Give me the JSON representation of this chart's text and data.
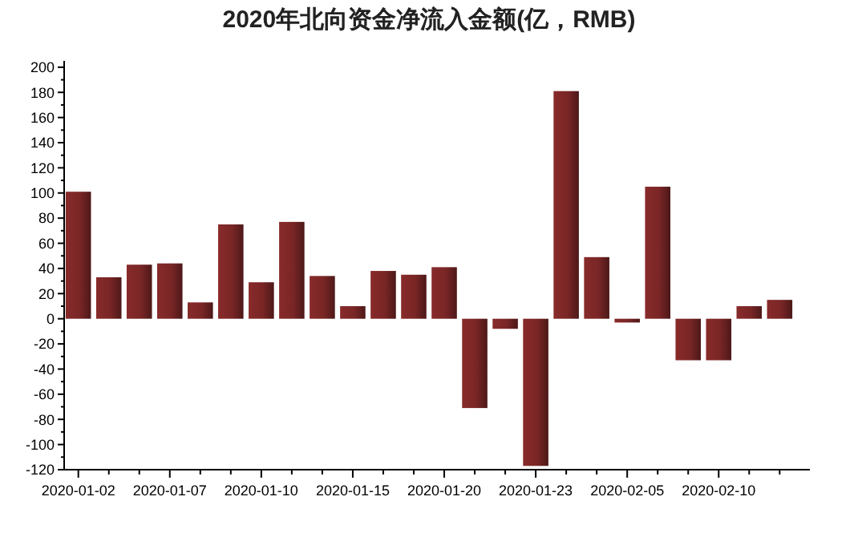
{
  "chart_data": {
    "type": "bar",
    "title": "2020年北向资金净流入金额(亿，RMB)",
    "categories": [
      "2020-01-02",
      null,
      null,
      "2020-01-07",
      null,
      null,
      "2020-01-10",
      null,
      null,
      "2020-01-15",
      null,
      null,
      "2020-01-20",
      null,
      null,
      "2020-01-23",
      null,
      null,
      "2020-02-05",
      null,
      null,
      "2020-02-10",
      null,
      null
    ],
    "values": [
      101,
      33,
      43,
      44,
      13,
      75,
      29,
      77,
      34,
      10,
      38,
      35,
      41,
      -71,
      -8,
      -117,
      181,
      49,
      -3,
      105,
      -33,
      -33,
      10,
      15
    ],
    "color": "#7a2626",
    "ylim": [
      -120,
      205
    ],
    "yticks": [
      -120,
      -100,
      -80,
      -60,
      -40,
      -20,
      0,
      20,
      40,
      60,
      80,
      100,
      120,
      140,
      160,
      180,
      200
    ],
    "grid": false
  }
}
